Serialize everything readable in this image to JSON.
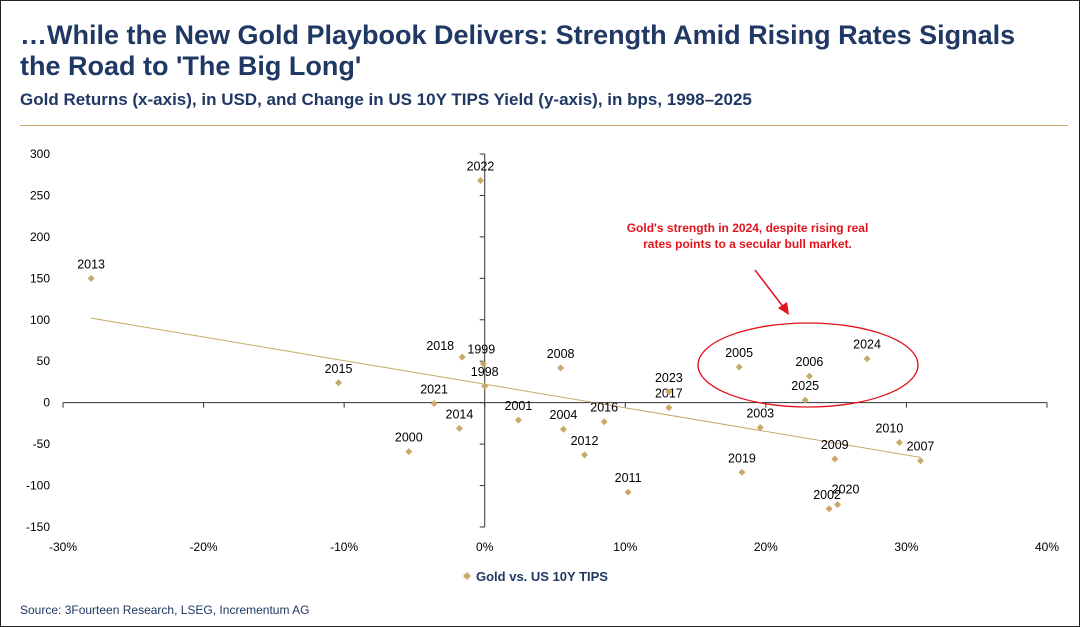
{
  "header": {
    "title": "…While the New Gold Playbook Delivers: Strength Amid Rising Rates Signals the Road to 'The Big Long'",
    "subtitle": "Gold Returns (x-axis), in USD, and Change in US 10Y TIPS Yield (y-axis), in bps, 1998–2025"
  },
  "annotation": {
    "text": "Gold's strength in 2024, despite rising real rates points to a secular bull market."
  },
  "source": "Source: 3Fourteen Research, LSEG, Incrementum AG",
  "colors": {
    "marker": "#c8a96a",
    "trendline": "#c8a96a",
    "annotation": "#e0141c",
    "title": "#1f3864"
  },
  "chart_data": {
    "type": "scatter",
    "xlim": [
      -30,
      40
    ],
    "ylim": [
      -150,
      300
    ],
    "xticks": [
      -30,
      -20,
      -10,
      0,
      10,
      20,
      30,
      40
    ],
    "xtick_labels": [
      "-30%",
      "-20%",
      "-10%",
      "0%",
      "10%",
      "20%",
      "30%",
      "40%"
    ],
    "yticks": [
      -150,
      -100,
      -50,
      0,
      50,
      100,
      150,
      200,
      250,
      300
    ],
    "ytick_labels": [
      "-150",
      "-100",
      "-50",
      "0",
      "50",
      "100",
      "150",
      "200",
      "250",
      "300"
    ],
    "grid": false,
    "legend_position": "bottom-center",
    "series": [
      {
        "name": "Gold vs. US 10Y TIPS",
        "points": [
          {
            "label": "1998",
            "x": 0.0,
            "y": 20
          },
          {
            "label": "1999",
            "x": -0.1,
            "y": 47
          },
          {
            "label": "2000",
            "x": -5.4,
            "y": -59
          },
          {
            "label": "2001",
            "x": 2.4,
            "y": -21
          },
          {
            "label": "2002",
            "x": 24.5,
            "y": -128
          },
          {
            "label": "2003",
            "x": 19.6,
            "y": -30
          },
          {
            "label": "2004",
            "x": 5.6,
            "y": -32
          },
          {
            "label": "2005",
            "x": 18.1,
            "y": 43
          },
          {
            "label": "2006",
            "x": 23.1,
            "y": 32
          },
          {
            "label": "2007",
            "x": 31.0,
            "y": -70
          },
          {
            "label": "2008",
            "x": 5.4,
            "y": 42
          },
          {
            "label": "2009",
            "x": 24.9,
            "y": -68
          },
          {
            "label": "2010",
            "x": 29.5,
            "y": -48
          },
          {
            "label": "2011",
            "x": 10.2,
            "y": -108
          },
          {
            "label": "2012",
            "x": 7.1,
            "y": -63
          },
          {
            "label": "2013",
            "x": -28.0,
            "y": 150
          },
          {
            "label": "2014",
            "x": -1.8,
            "y": -31
          },
          {
            "label": "2015",
            "x": -10.4,
            "y": 24
          },
          {
            "label": "2016",
            "x": 8.5,
            "y": -23
          },
          {
            "label": "2017",
            "x": 13.1,
            "y": -6
          },
          {
            "label": "2018",
            "x": -1.6,
            "y": 55
          },
          {
            "label": "2019",
            "x": 18.3,
            "y": -84
          },
          {
            "label": "2020",
            "x": 25.1,
            "y": -123
          },
          {
            "label": "2021",
            "x": -3.6,
            "y": -1
          },
          {
            "label": "2022",
            "x": -0.3,
            "y": 268
          },
          {
            "label": "2023",
            "x": 13.1,
            "y": 13
          },
          {
            "label": "2024",
            "x": 27.2,
            "y": 53
          },
          {
            "label": "2025",
            "x": 22.8,
            "y": 3
          }
        ]
      }
    ],
    "trendline": {
      "x": [
        -28,
        31
      ],
      "y": [
        102,
        -66
      ]
    }
  }
}
